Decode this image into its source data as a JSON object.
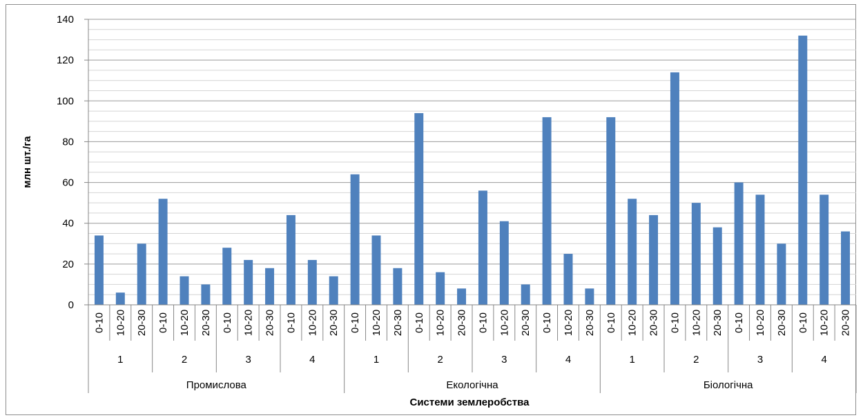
{
  "chart_data": {
    "type": "bar",
    "title": "",
    "xlabel": "Системи землеробства",
    "ylabel": "млн шт./га",
    "ylim": [
      0,
      140
    ],
    "yticks": [
      0,
      20,
      40,
      60,
      80,
      100,
      120,
      140
    ],
    "grid": true,
    "bar_color": "#4f81bd",
    "groups": [
      {
        "system": "Промислова",
        "subgroups": [
          {
            "label": "1",
            "depths": [
              "0-10",
              "10-20",
              "20-30"
            ],
            "values": [
              34,
              6,
              30
            ]
          },
          {
            "label": "2",
            "depths": [
              "0-10",
              "10-20",
              "20-30"
            ],
            "values": [
              52,
              14,
              10
            ]
          },
          {
            "label": "3",
            "depths": [
              "0-10",
              "10-20",
              "20-30"
            ],
            "values": [
              28,
              22,
              18
            ]
          },
          {
            "label": "4",
            "depths": [
              "0-10",
              "10-20",
              "20-30"
            ],
            "values": [
              44,
              22,
              14
            ]
          }
        ]
      },
      {
        "system": "Екологічна",
        "subgroups": [
          {
            "label": "1",
            "depths": [
              "0-10",
              "10-20",
              "20-30"
            ],
            "values": [
              64,
              34,
              18
            ]
          },
          {
            "label": "2",
            "depths": [
              "0-10",
              "10-20",
              "20-30"
            ],
            "values": [
              94,
              16,
              8
            ]
          },
          {
            "label": "3",
            "depths": [
              "0-10",
              "10-20",
              "20-30"
            ],
            "values": [
              56,
              41,
              10
            ]
          },
          {
            "label": "4",
            "depths": [
              "0-10",
              "10-20",
              "20-30"
            ],
            "values": [
              92,
              25,
              8
            ]
          }
        ]
      },
      {
        "system": "Біологічна",
        "subgroups": [
          {
            "label": "1",
            "depths": [
              "0-10",
              "10-20",
              "20-30"
            ],
            "values": [
              92,
              52,
              44
            ]
          },
          {
            "label": "2",
            "depths": [
              "0-10",
              "10-20",
              "20-30"
            ],
            "values": [
              114,
              50,
              38
            ]
          },
          {
            "label": "3",
            "depths": [
              "0-10",
              "10-20",
              "20-30"
            ],
            "values": [
              60,
              54,
              30
            ]
          },
          {
            "label": "4",
            "depths": [
              "0-10",
              "10-20",
              "20-30"
            ],
            "values": [
              132,
              54,
              36
            ]
          }
        ]
      }
    ]
  }
}
